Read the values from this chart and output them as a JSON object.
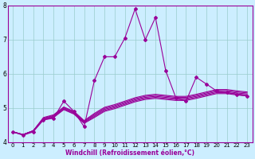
{
  "x": [
    0,
    1,
    2,
    3,
    4,
    5,
    6,
    7,
    8,
    9,
    10,
    11,
    12,
    13,
    14,
    15,
    16,
    17,
    18,
    19,
    20,
    21,
    22,
    23
  ],
  "line_spiky": [
    4.3,
    4.2,
    4.3,
    4.65,
    4.7,
    5.2,
    4.9,
    4.45,
    5.8,
    6.5,
    6.5,
    7.05,
    7.9,
    7.0,
    7.65,
    6.1,
    5.3,
    5.2,
    5.9,
    5.7,
    5.5,
    5.45,
    5.4,
    5.35
  ],
  "line_a": [
    4.3,
    4.22,
    4.33,
    4.65,
    4.72,
    4.95,
    4.82,
    4.55,
    4.72,
    4.9,
    4.98,
    5.08,
    5.18,
    5.25,
    5.28,
    5.25,
    5.22,
    5.22,
    5.28,
    5.35,
    5.42,
    5.42,
    5.38,
    5.35
  ],
  "line_b": [
    4.3,
    4.22,
    4.33,
    4.67,
    4.74,
    4.97,
    4.84,
    4.57,
    4.75,
    4.93,
    5.01,
    5.11,
    5.21,
    5.28,
    5.31,
    5.28,
    5.25,
    5.25,
    5.31,
    5.38,
    5.45,
    5.45,
    5.41,
    5.38
  ],
  "line_c": [
    4.3,
    4.22,
    4.33,
    4.68,
    4.76,
    4.99,
    4.86,
    4.59,
    4.78,
    4.96,
    5.04,
    5.14,
    5.24,
    5.31,
    5.34,
    5.31,
    5.28,
    5.28,
    5.34,
    5.41,
    5.48,
    5.48,
    5.44,
    5.41
  ],
  "line_d": [
    4.3,
    4.22,
    4.33,
    4.7,
    4.78,
    5.01,
    4.88,
    4.61,
    4.81,
    4.99,
    5.07,
    5.17,
    5.27,
    5.34,
    5.37,
    5.34,
    5.31,
    5.31,
    5.37,
    5.44,
    5.51,
    5.51,
    5.47,
    5.44
  ],
  "line_e": [
    4.3,
    4.22,
    4.33,
    4.72,
    4.8,
    5.03,
    4.9,
    4.63,
    4.84,
    5.02,
    5.1,
    5.2,
    5.3,
    5.37,
    5.4,
    5.37,
    5.34,
    5.34,
    5.4,
    5.47,
    5.54,
    5.54,
    5.5,
    5.47
  ],
  "line_color": "#990099",
  "bg_color": "#cceeff",
  "grid_color": "#99cccc",
  "ylim": [
    4.0,
    8.0
  ],
  "xlim": [
    -0.5,
    23.5
  ],
  "yticks": [
    4,
    5,
    6,
    7,
    8
  ],
  "xticks": [
    0,
    1,
    2,
    3,
    4,
    5,
    6,
    7,
    8,
    9,
    10,
    11,
    12,
    13,
    14,
    15,
    16,
    17,
    18,
    19,
    20,
    21,
    22,
    23
  ],
  "xlabel": "Windchill (Refroidissement éolien,°C)",
  "marker": "D",
  "markersize": 2.0,
  "linewidth": 0.8,
  "tick_fontsize": 5.0,
  "xlabel_fontsize": 5.5
}
